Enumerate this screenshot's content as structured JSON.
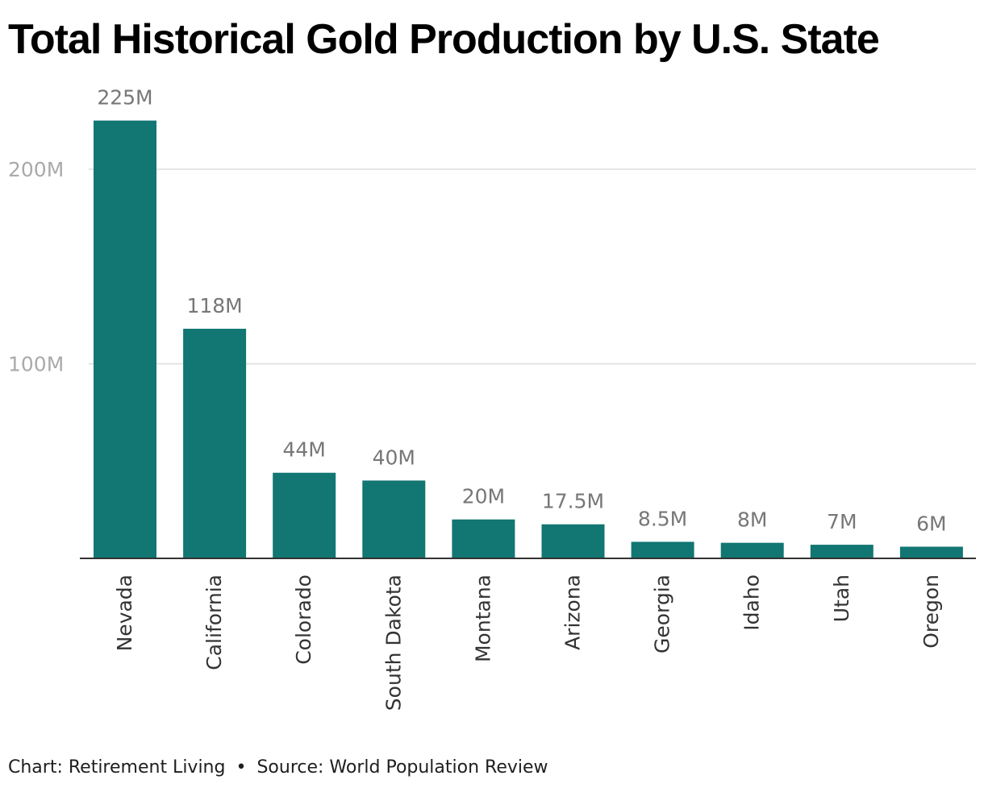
{
  "chart_data": {
    "type": "bar",
    "title": "Total Historical Gold Production by U.S. State",
    "xlabel": "",
    "ylabel": "",
    "ylim": [
      0,
      250000000
    ],
    "y_ticks": [
      100000000,
      200000000
    ],
    "y_tick_labels": [
      "100M",
      "200M"
    ],
    "grid": true,
    "categories": [
      "Nevada",
      "California",
      "Colorado",
      "South Dakota",
      "Montana",
      "Arizona",
      "Georgia",
      "Idaho",
      "Utah",
      "Oregon"
    ],
    "values": [
      225000000,
      118000000,
      44000000,
      40000000,
      20000000,
      17500000,
      8500000,
      8000000,
      7000000,
      6000000
    ],
    "data_labels": [
      "225M",
      "118M",
      "44M",
      "40M",
      "20M",
      "17.5M",
      "8.5M",
      "8M",
      "7M",
      "6M"
    ],
    "colors": {
      "bar": "#127672",
      "grid": "#dddddd",
      "baseline": "#333333",
      "tick_label": "#aaaaaa",
      "data_label": "#777777",
      "category_label": "#333333"
    }
  },
  "footer": {
    "chart_credit": "Chart: Retirement Living",
    "separator": "•",
    "source": "Source: World Population Review"
  }
}
